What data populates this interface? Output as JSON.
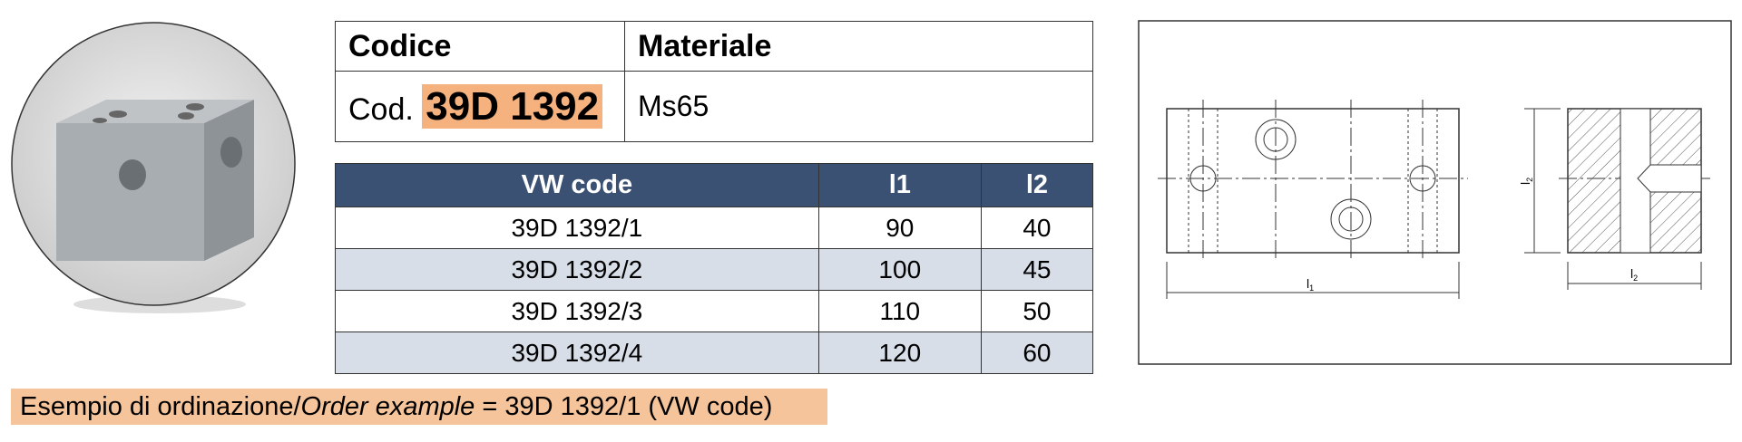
{
  "header_table": {
    "headers": [
      "Codice",
      "Materiale"
    ],
    "code_prefix": "Cod.",
    "code": "39D 1392",
    "material": "Ms65"
  },
  "table": {
    "headers": [
      "VW code",
      "l1",
      "l2"
    ],
    "rows": [
      [
        "39D 1392/1",
        90,
        40
      ],
      [
        "39D 1392/2",
        100,
        45
      ],
      [
        "39D 1392/3",
        110,
        50
      ],
      [
        "39D 1392/4",
        120,
        60
      ]
    ]
  },
  "order_example": {
    "label": "Esempio di ordinazione/",
    "label_en": "Order example",
    "text": " = 39D 1392/1 (VW code)"
  },
  "drawing": {
    "labels": [
      {
        "letter": "l",
        "sub": "1"
      },
      {
        "letter": "l",
        "sub": "2"
      },
      {
        "letter": "l",
        "sub": "2"
      }
    ]
  }
}
